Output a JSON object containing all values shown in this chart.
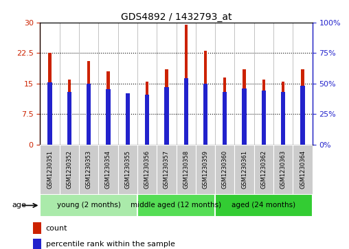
{
  "title": "GDS4892 / 1432793_at",
  "samples": [
    "GSM1230351",
    "GSM1230352",
    "GSM1230353",
    "GSM1230354",
    "GSM1230355",
    "GSM1230356",
    "GSM1230357",
    "GSM1230358",
    "GSM1230359",
    "GSM1230360",
    "GSM1230361",
    "GSM1230362",
    "GSM1230363",
    "GSM1230364"
  ],
  "counts": [
    22.5,
    16.0,
    20.5,
    18.0,
    12.5,
    15.5,
    18.5,
    29.5,
    23.0,
    16.5,
    18.5,
    16.0,
    15.5,
    18.5
  ],
  "percentile_ranks_pct": [
    51,
    43,
    50,
    45,
    42,
    41,
    47,
    54,
    50,
    43,
    46,
    44,
    43,
    48
  ],
  "count_color": "#cc2200",
  "percentile_color": "#2222cc",
  "ylim_left": [
    0,
    30
  ],
  "ylim_right": [
    0,
    100
  ],
  "yticks_left": [
    0,
    7.5,
    15,
    22.5,
    30
  ],
  "yticks_right": [
    0,
    25,
    50,
    75,
    100
  ],
  "ytick_labels_left": [
    "0",
    "7.5",
    "15",
    "22.5",
    "30"
  ],
  "ytick_labels_right": [
    "0%",
    "25%",
    "50%",
    "75%",
    "100%"
  ],
  "groups": [
    {
      "label": "young (2 months)",
      "start": 0,
      "end": 5,
      "color": "#aaeaaa"
    },
    {
      "label": "middle aged (12 months)",
      "start": 5,
      "end": 9,
      "color": "#55dd55"
    },
    {
      "label": "aged (24 months)",
      "start": 9,
      "end": 14,
      "color": "#33cc33"
    }
  ],
  "age_label": "age",
  "legend_count": "count",
  "legend_percentile": "percentile rank within the sample",
  "bar_width": 0.15,
  "background_color": "#ffffff",
  "plot_bg_color": "#ffffff",
  "label_bg_color": "#cccccc",
  "group_border_color": "#ffffff"
}
